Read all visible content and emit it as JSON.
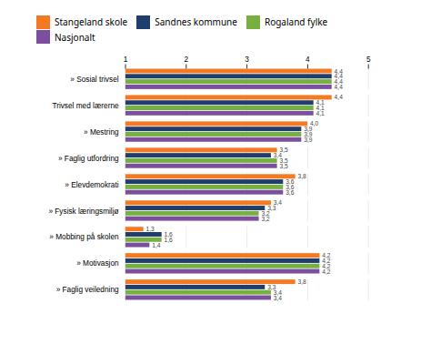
{
  "chart_data": {
    "type": "bar",
    "orientation": "horizontal",
    "categories": [
      "» Sosial trivsel",
      "Trivsel med lærerne",
      "» Mestring",
      "» Faglig utfordring",
      "» Elevdemokrati",
      "» Fysisk læringsmiljø",
      "» Mobbing på skolen",
      "» Motivasjon",
      "» Faglig veiledning"
    ],
    "series": [
      {
        "name": "Stangeland skole",
        "color": "#F47920",
        "values": [
          4.4,
          4.4,
          4.0,
          3.5,
          3.8,
          3.4,
          1.3,
          4.2,
          3.8
        ],
        "value_labels": [
          "4,4",
          "4,4",
          "4,0",
          "3,5",
          "3,8",
          "3,4",
          "1,3",
          "4,2",
          "3,8"
        ]
      },
      {
        "name": "Sandnes kommune",
        "color": "#1F3E6E",
        "values": [
          4.4,
          4.1,
          3.9,
          3.4,
          3.6,
          3.3,
          1.6,
          4.2,
          3.3
        ],
        "value_labels": [
          "4,4",
          "4,1",
          "3,9",
          "3,4",
          "3,6",
          "3,3",
          "1,6",
          "4,2",
          "3,3"
        ]
      },
      {
        "name": "Rogaland fylke",
        "color": "#76B041",
        "values": [
          4.4,
          4.1,
          3.9,
          3.5,
          3.6,
          3.2,
          1.6,
          4.2,
          3.4
        ],
        "value_labels": [
          "4,4",
          "4,1",
          "3,9",
          "3,5",
          "3,6",
          "3,2",
          "1,6",
          "4,2",
          "3,4"
        ]
      },
      {
        "name": "Nasjonalt",
        "color": "#7B4F9E",
        "values": [
          4.4,
          4.1,
          3.9,
          3.5,
          3.6,
          3.2,
          1.4,
          4.2,
          3.4
        ],
        "value_labels": [
          "4,4",
          "4,1",
          "3,9",
          "3,5",
          "3,6",
          "3,2",
          "1,4",
          "4,2",
          "3,4"
        ]
      }
    ],
    "xlim": [
      1,
      5
    ],
    "xticks": [
      1,
      2,
      3,
      4,
      5
    ],
    "grid": true,
    "legend": "top",
    "data_labels": true
  }
}
